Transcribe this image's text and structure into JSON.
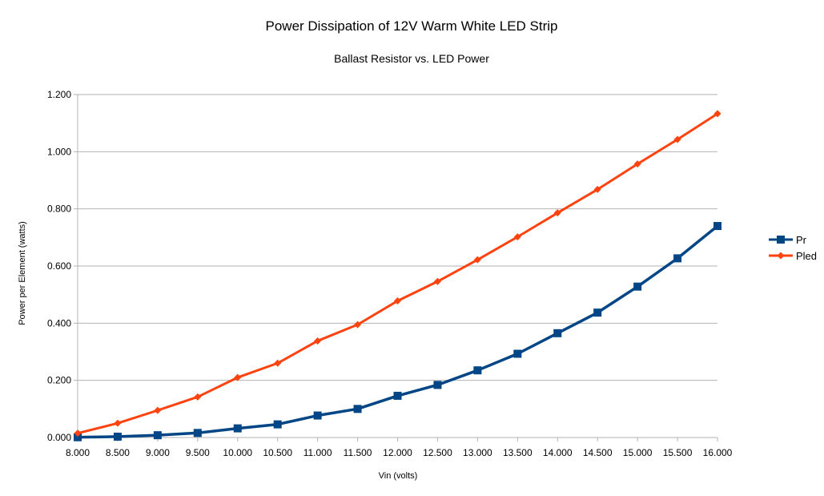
{
  "chart_data": {
    "type": "line",
    "title": "Power Dissipation of 12V Warm White LED Strip",
    "subtitle": "Ballast Resistor vs. LED Power",
    "xlabel": "Vin (volts)",
    "ylabel": "Power per Element (watts)",
    "x": [
      8.0,
      8.5,
      9.0,
      9.5,
      10.0,
      10.5,
      11.0,
      11.5,
      12.0,
      12.5,
      13.0,
      13.5,
      14.0,
      14.5,
      15.0,
      15.5,
      16.0
    ],
    "x_tick_labels": [
      "8.000",
      "8.500",
      "9.000",
      "9.500",
      "10.000",
      "10.500",
      "11.000",
      "11.500",
      "12.000",
      "12.500",
      "13.000",
      "13.500",
      "14.000",
      "14.500",
      "15.000",
      "15.500",
      "16.000"
    ],
    "xlim": [
      8.0,
      16.0
    ],
    "ylim": [
      0,
      1.2
    ],
    "y_ticks": [
      0,
      0.2,
      0.4,
      0.6,
      0.8,
      1.0,
      1.2
    ],
    "y_tick_labels": [
      "0.000",
      "0.200",
      "0.400",
      "0.600",
      "0.800",
      "1.000",
      "1.200"
    ],
    "grid": "horizontal",
    "legend_position": "right",
    "series": [
      {
        "name": "Pr",
        "color": "#004586",
        "marker": "square",
        "values": [
          0.001,
          0.003,
          0.008,
          0.016,
          0.032,
          0.046,
          0.077,
          0.1,
          0.146,
          0.184,
          0.235,
          0.293,
          0.365,
          0.437,
          0.528,
          0.627,
          0.74
        ]
      },
      {
        "name": "Pled",
        "color": "#ff420e",
        "marker": "diamond",
        "values": [
          0.015,
          0.05,
          0.095,
          0.142,
          0.21,
          0.26,
          0.338,
          0.395,
          0.478,
          0.546,
          0.622,
          0.702,
          0.786,
          0.868,
          0.957,
          1.043,
          1.133
        ]
      }
    ]
  }
}
